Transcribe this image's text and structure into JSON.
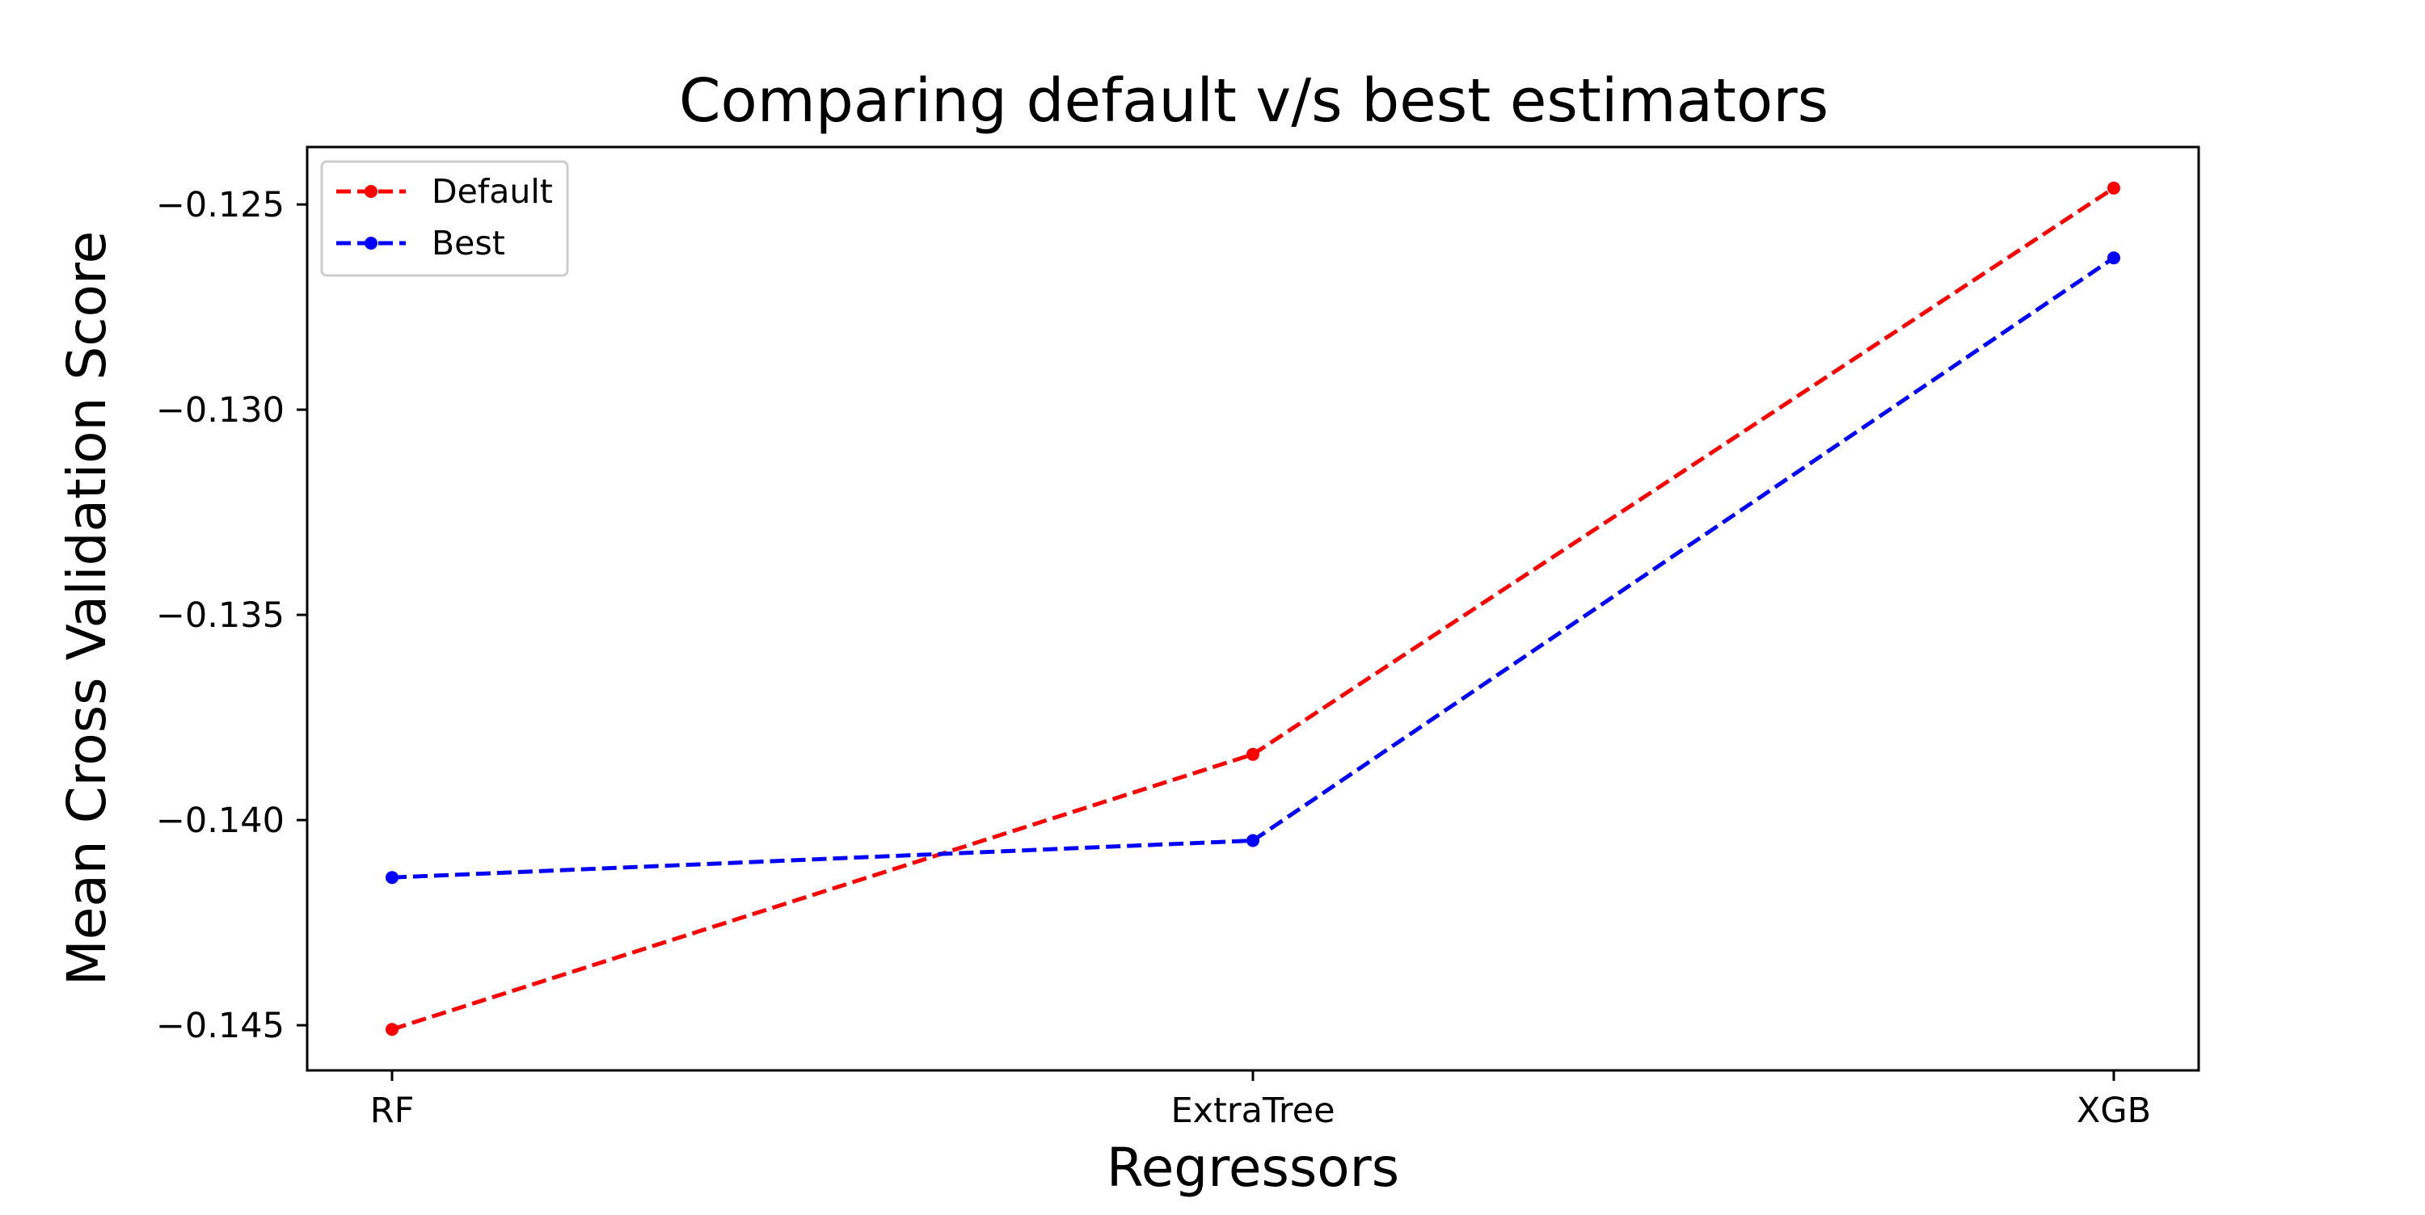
{
  "chart_data": {
    "type": "line",
    "title": "Comparing default v/s best estimators",
    "xlabel": "Regressors",
    "ylabel": "Mean Cross Validation Score",
    "categories": [
      "RF",
      "ExtraTree",
      "XGB"
    ],
    "ylim": [
      -0.1461,
      -0.1236
    ],
    "yticks": [
      -0.145,
      -0.14,
      -0.135,
      -0.13,
      -0.125
    ],
    "ytick_labels": [
      "−0.145",
      "−0.140",
      "−0.135",
      "−0.130",
      "−0.125"
    ],
    "grid": false,
    "legend_position": "top-left",
    "line_style": "dashed",
    "marker": "circle",
    "series": [
      {
        "name": "Default",
        "color": "#ff0000",
        "values": [
          -0.1451,
          -0.1384,
          -0.1246
        ]
      },
      {
        "name": "Best",
        "color": "#0000ff",
        "values": [
          -0.1414,
          -0.1405,
          -0.1263
        ]
      }
    ]
  }
}
